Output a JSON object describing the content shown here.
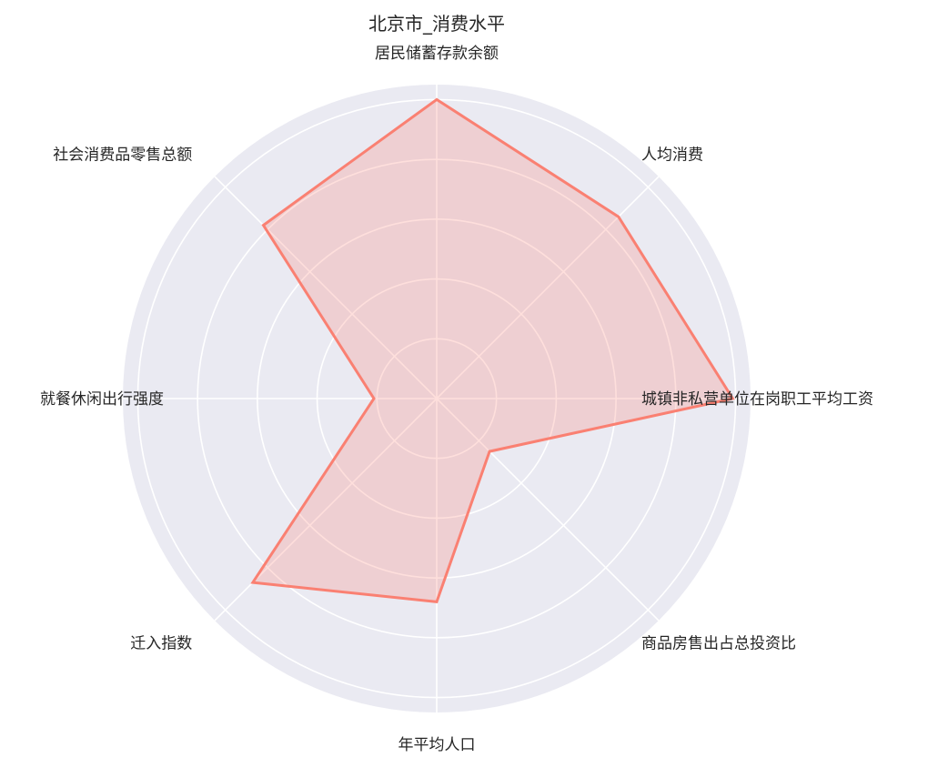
{
  "chart_data": {
    "type": "radar",
    "title": "北京市_消费水平",
    "categories": [
      "居民储蓄存款余额",
      "人均消费",
      "城镇非私营单位在岗职工平均工资",
      "商品房售出占总投资比",
      "年平均人口",
      "迁入指数",
      "就餐休闲出行强度",
      "社会消费品零售总额"
    ],
    "series": [
      {
        "values": [
          1.0,
          0.86,
          0.99,
          0.25,
          0.68,
          0.87,
          0.21,
          0.82
        ],
        "color": "#fa8072"
      }
    ],
    "rlim": [
      0,
      1.05
    ],
    "rings": [
      0.2,
      0.4,
      0.6,
      0.8,
      1.0
    ],
    "grid": true,
    "background_color": "#eaeaf2"
  }
}
